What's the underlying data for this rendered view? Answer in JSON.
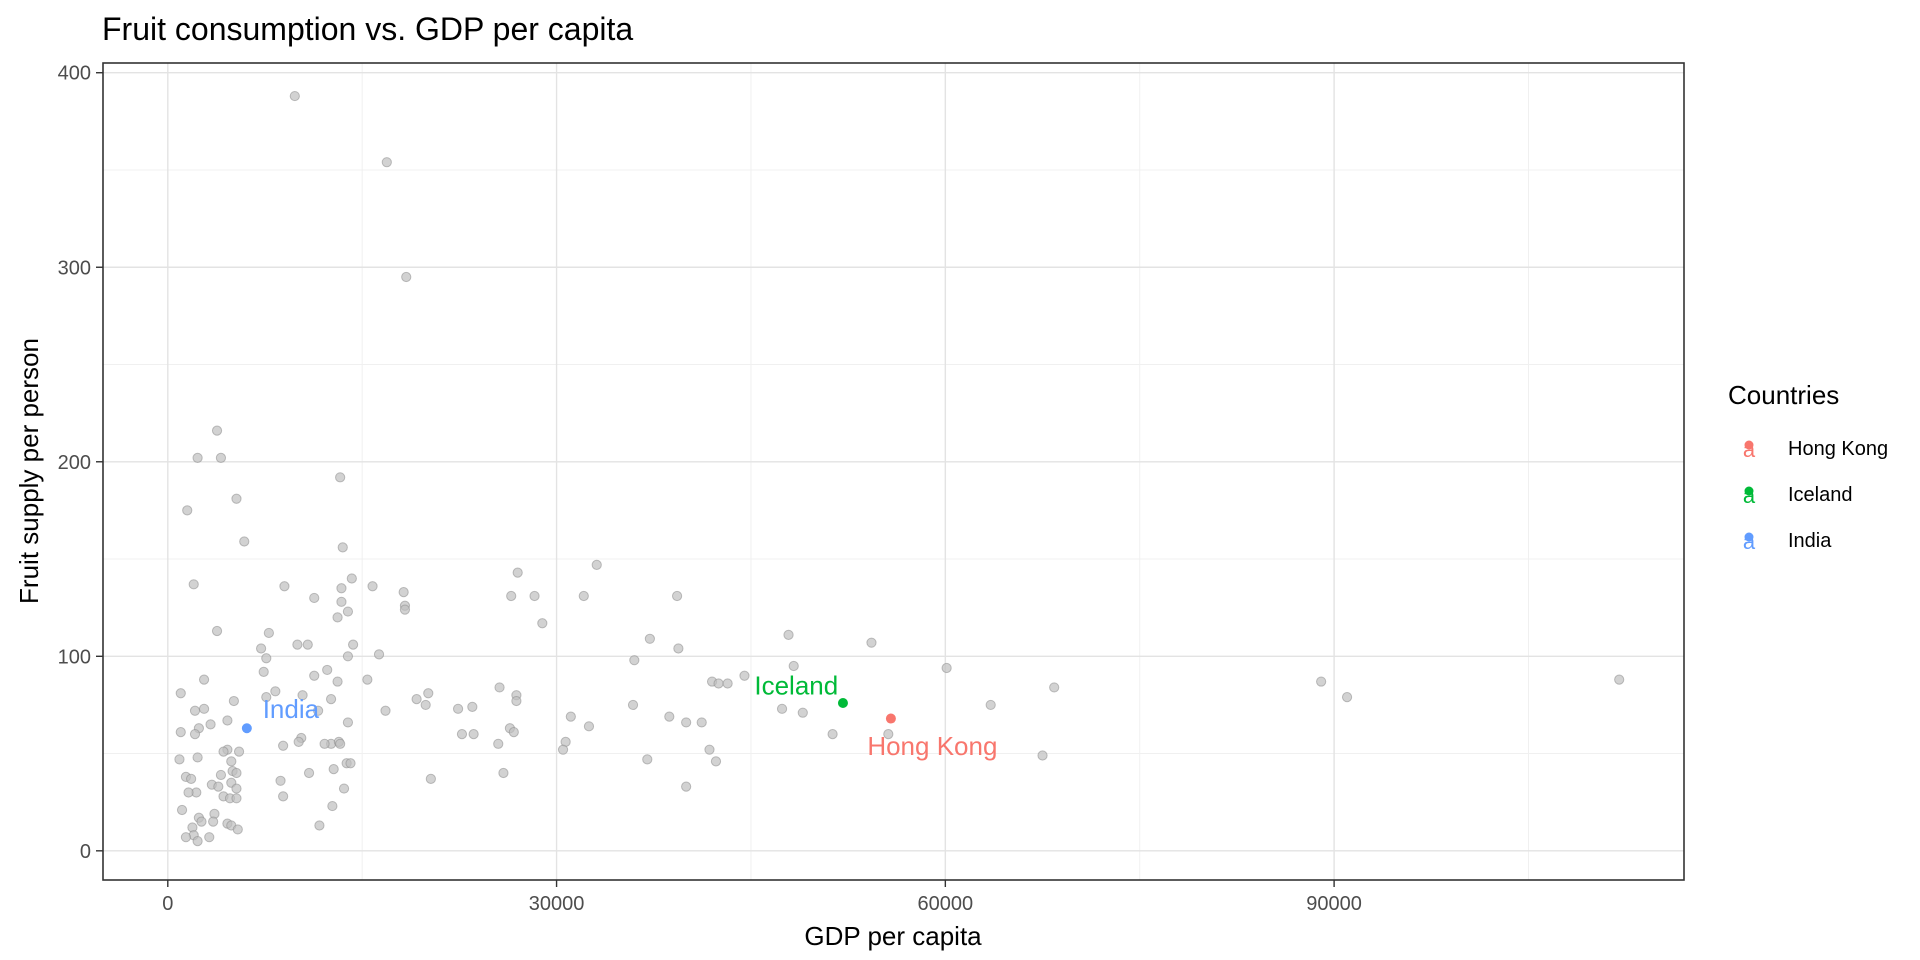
{
  "chart_data": {
    "type": "scatter",
    "title": "Fruit consumption vs. GDP per capita",
    "xlabel": "GDP per capita",
    "ylabel": "Fruit supply per person",
    "xlim": [
      -5000,
      117000
    ],
    "ylim": [
      -15,
      405
    ],
    "xticks": [
      0,
      30000,
      60000,
      90000
    ],
    "xtick_labels": [
      "0",
      "30000",
      "60000",
      "90000"
    ],
    "x_minor_ticks": [
      15000,
      45000,
      75000,
      105000
    ],
    "yticks": [
      0,
      100,
      200,
      300,
      400
    ],
    "ytick_labels": [
      "0",
      "100",
      "200",
      "300",
      "400"
    ],
    "y_minor_ticks": [
      50,
      150,
      250,
      350
    ],
    "grid": true,
    "legend": {
      "title": "Countries",
      "position": "right",
      "entries": [
        {
          "name": "Hong Kong",
          "color": "#F8766D"
        },
        {
          "name": "Iceland",
          "color": "#00BA38"
        },
        {
          "name": "India",
          "color": "#619CFF"
        }
      ]
    },
    "highlighted": [
      {
        "name": "Hong Kong",
        "x": 55800,
        "y": 68,
        "color": "#F8766D",
        "label": "Hong Kong",
        "label_x": 59000,
        "label_y": 54
      },
      {
        "name": "Iceland",
        "x": 52100,
        "y": 76,
        "color": "#00BA38",
        "label": "Iceland",
        "label_x": 48500,
        "label_y": 85
      },
      {
        "name": "India",
        "x": 6100,
        "y": 63,
        "color": "#619CFF",
        "label": "India",
        "label_x": 9500,
        "label_y": 73
      }
    ],
    "background_point_color": "#bfbfbf",
    "points": [
      [
        9800,
        388
      ],
      [
        16900,
        354
      ],
      [
        18400,
        295
      ],
      [
        3800,
        216
      ],
      [
        2300,
        202
      ],
      [
        4100,
        202
      ],
      [
        13300,
        192
      ],
      [
        5300,
        181
      ],
      [
        1500,
        175
      ],
      [
        5900,
        159
      ],
      [
        13500,
        156
      ],
      [
        33100,
        147
      ],
      [
        27000,
        143
      ],
      [
        14200,
        140
      ],
      [
        2000,
        137
      ],
      [
        15800,
        136
      ],
      [
        9000,
        136
      ],
      [
        13400,
        135
      ],
      [
        18200,
        133
      ],
      [
        26500,
        131
      ],
      [
        28300,
        131
      ],
      [
        32100,
        131
      ],
      [
        39300,
        131
      ],
      [
        11300,
        130
      ],
      [
        13400,
        128
      ],
      [
        18300,
        126
      ],
      [
        18300,
        124
      ],
      [
        13900,
        123
      ],
      [
        13100,
        120
      ],
      [
        28900,
        117
      ],
      [
        3800,
        113
      ],
      [
        7800,
        112
      ],
      [
        47900,
        111
      ],
      [
        37200,
        109
      ],
      [
        54300,
        107
      ],
      [
        14300,
        106
      ],
      [
        10000,
        106
      ],
      [
        10800,
        106
      ],
      [
        7200,
        104
      ],
      [
        39400,
        104
      ],
      [
        13900,
        100
      ],
      [
        16300,
        101
      ],
      [
        7600,
        99
      ],
      [
        36000,
        98
      ],
      [
        12300,
        93
      ],
      [
        48300,
        95
      ],
      [
        60100,
        94
      ],
      [
        7400,
        92
      ],
      [
        11300,
        90
      ],
      [
        44500,
        90
      ],
      [
        2800,
        88
      ],
      [
        13100,
        87
      ],
      [
        15400,
        88
      ],
      [
        42000,
        87
      ],
      [
        89000,
        87
      ],
      [
        112000,
        88
      ],
      [
        42500,
        86
      ],
      [
        43200,
        86
      ],
      [
        25600,
        84
      ],
      [
        68400,
        84
      ],
      [
        8300,
        82
      ],
      [
        20100,
        81
      ],
      [
        1000,
        81
      ],
      [
        26900,
        80
      ],
      [
        7600,
        79
      ],
      [
        10400,
        80
      ],
      [
        91000,
        79
      ],
      [
        12600,
        78
      ],
      [
        19200,
        78
      ],
      [
        5100,
        77
      ],
      [
        26900,
        77
      ],
      [
        2800,
        73
      ],
      [
        16800,
        72
      ],
      [
        35900,
        75
      ],
      [
        63500,
        75
      ],
      [
        19900,
        75
      ],
      [
        11600,
        72
      ],
      [
        22400,
        73
      ],
      [
        23500,
        74
      ],
      [
        2100,
        72
      ],
      [
        47400,
        73
      ],
      [
        49000,
        71
      ],
      [
        38700,
        69
      ],
      [
        31100,
        69
      ],
      [
        41200,
        66
      ],
      [
        4600,
        67
      ],
      [
        3300,
        65
      ],
      [
        13900,
        66
      ],
      [
        40000,
        66
      ],
      [
        2400,
        63
      ],
      [
        2100,
        60
      ],
      [
        26400,
        63
      ],
      [
        32500,
        64
      ],
      [
        1000,
        61
      ],
      [
        26700,
        61
      ],
      [
        22700,
        60
      ],
      [
        23600,
        60
      ],
      [
        51300,
        60
      ],
      [
        55600,
        60
      ],
      [
        10300,
        58
      ],
      [
        12600,
        55
      ],
      [
        10100,
        56
      ],
      [
        12100,
        55
      ],
      [
        13200,
        56
      ],
      [
        8900,
        54
      ],
      [
        30700,
        56
      ],
      [
        25500,
        55
      ],
      [
        13300,
        55
      ],
      [
        41800,
        52
      ],
      [
        4600,
        52
      ],
      [
        30500,
        52
      ],
      [
        5500,
        51
      ],
      [
        4300,
        51
      ],
      [
        67500,
        49
      ],
      [
        37000,
        47
      ],
      [
        900,
        47
      ],
      [
        2300,
        48
      ],
      [
        4900,
        46
      ],
      [
        13800,
        45
      ],
      [
        42300,
        46
      ],
      [
        14100,
        45
      ],
      [
        5000,
        41
      ],
      [
        1400,
        38
      ],
      [
        5300,
        40
      ],
      [
        10900,
        40
      ],
      [
        25900,
        40
      ],
      [
        1800,
        37
      ],
      [
        4100,
        39
      ],
      [
        12800,
        42
      ],
      [
        20300,
        37
      ],
      [
        8700,
        36
      ],
      [
        3400,
        34
      ],
      [
        4900,
        35
      ],
      [
        3900,
        33
      ],
      [
        5300,
        32
      ],
      [
        13600,
        32
      ],
      [
        40000,
        33
      ],
      [
        2200,
        30
      ],
      [
        1600,
        30
      ],
      [
        4300,
        28
      ],
      [
        8900,
        28
      ],
      [
        4800,
        27
      ],
      [
        5300,
        27
      ],
      [
        12700,
        23
      ],
      [
        3600,
        19
      ],
      [
        1100,
        21
      ],
      [
        2400,
        17
      ],
      [
        2600,
        15
      ],
      [
        3500,
        15
      ],
      [
        4600,
        14
      ],
      [
        11700,
        13
      ],
      [
        1900,
        12
      ],
      [
        4900,
        13
      ],
      [
        5400,
        11
      ],
      [
        2000,
        8
      ],
      [
        1400,
        7
      ],
      [
        3200,
        7
      ],
      [
        2300,
        5
      ]
    ]
  }
}
